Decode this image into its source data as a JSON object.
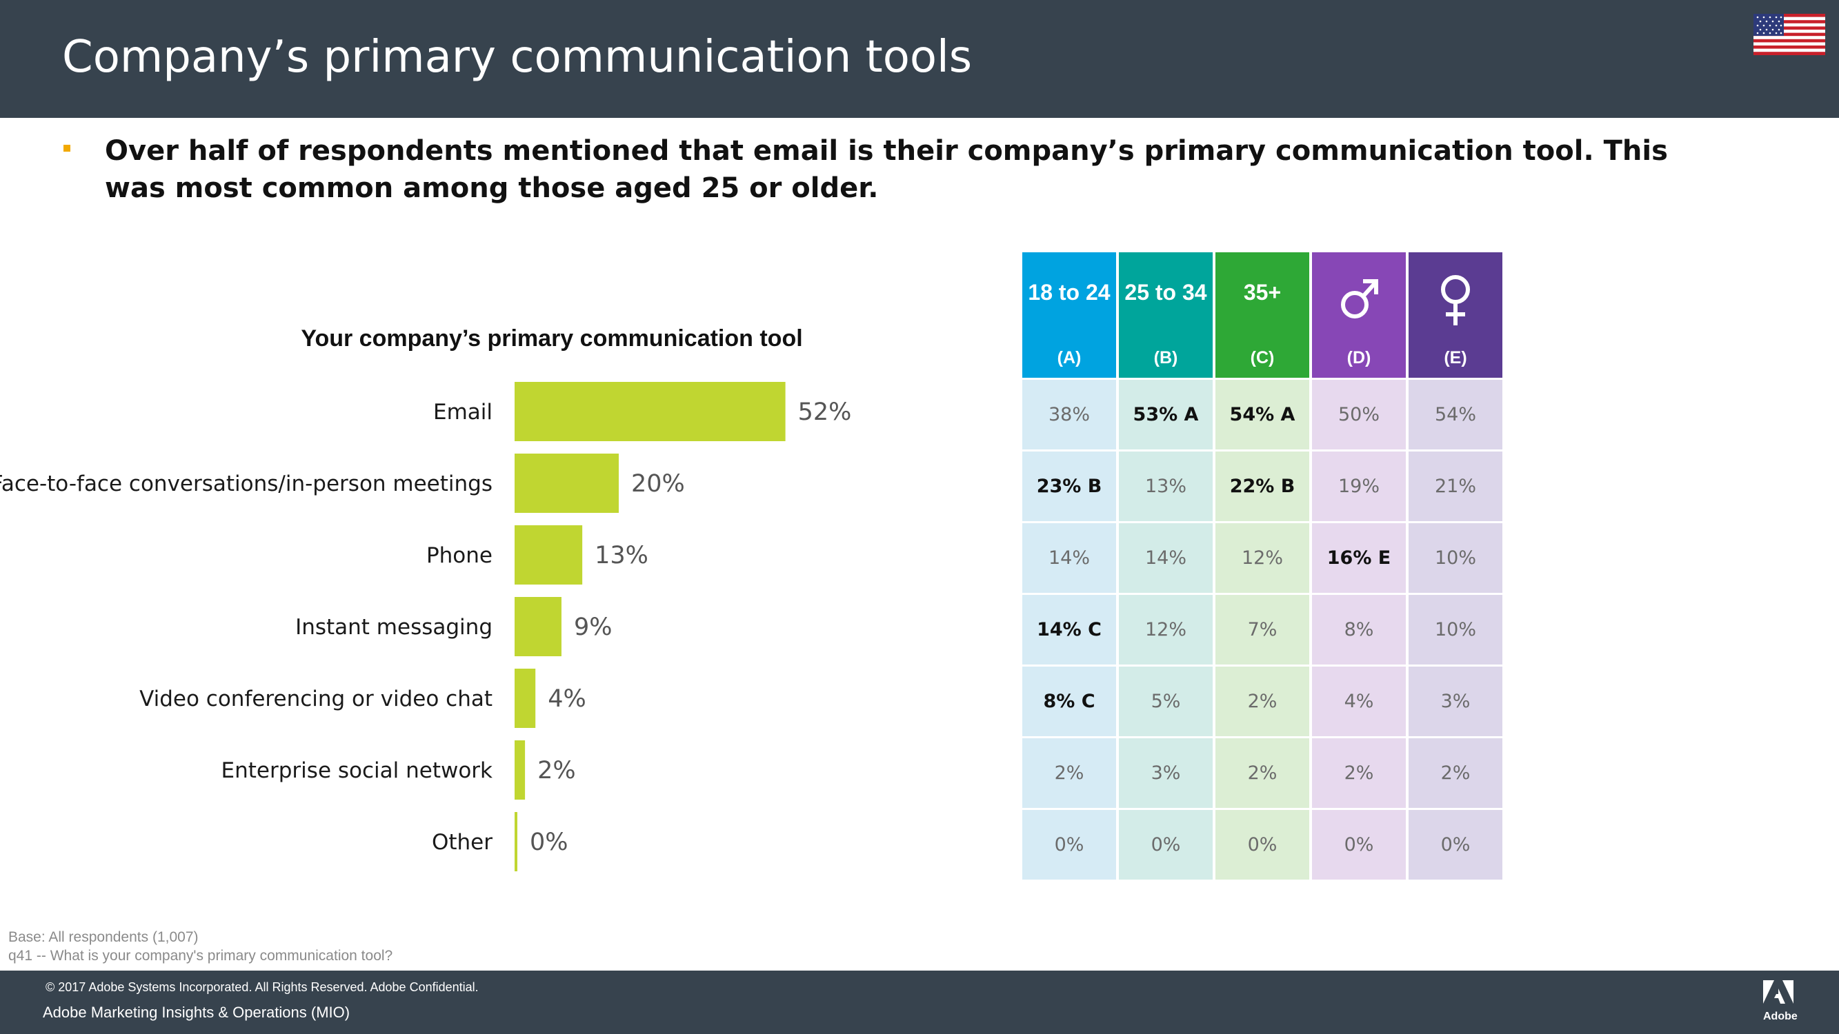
{
  "header": {
    "title": "Company’s primary communication tools",
    "flag_icon": "us-flag-icon"
  },
  "headline": "Over half of respondents mentioned that email is their company’s primary communication tool. This was most common among those aged 25 or older.",
  "chart_data": [
    {
      "type": "bar",
      "orientation": "horizontal",
      "title": "Your company’s primary communication tool",
      "categories": [
        "Email",
        "Face-to-face conversations/in-person meetings",
        "Phone",
        "Instant messaging",
        "Video conferencing or video chat",
        "Enterprise social network",
        "Other"
      ],
      "values": [
        52,
        20,
        13,
        9,
        4,
        2,
        0
      ],
      "value_labels": [
        "52%",
        "20%",
        "13%",
        "9%",
        "4%",
        "2%",
        "0%"
      ],
      "unit": "%",
      "xlim": [
        0,
        100
      ],
      "color": "#c0d631"
    },
    {
      "type": "table",
      "columns": [
        {
          "label": "18 to 24",
          "letter": "(A)",
          "header_color": "#00a3e0",
          "cell_color": "#d6ebf5"
        },
        {
          "label": "25 to 34",
          "letter": "(B)",
          "header_color": "#00a59b",
          "cell_color": "#d3ece8"
        },
        {
          "label": "35+",
          "letter": "(C)",
          "header_color": "#2ea836",
          "cell_color": "#dceed4"
        },
        {
          "label": "",
          "icon": "male-symbol-icon",
          "letter": "(D)",
          "header_color": "#8747b6",
          "cell_color": "#e7d9ee"
        },
        {
          "label": "",
          "icon": "female-symbol-icon",
          "letter": "(E)",
          "header_color": "#5b3c92",
          "cell_color": "#dcd6ea"
        }
      ],
      "rows": [
        [
          "38%",
          "53% A",
          "54% A",
          "50%",
          "54%"
        ],
        [
          "23% B",
          "13%",
          "22% B",
          "19%",
          "21%"
        ],
        [
          "14%",
          "14%",
          "12%",
          "16% E",
          "10%"
        ],
        [
          "14% C",
          "12%",
          "7%",
          "8%",
          "10%"
        ],
        [
          "8% C",
          "5%",
          "2%",
          "4%",
          "3%"
        ],
        [
          "2%",
          "3%",
          "2%",
          "2%",
          "2%"
        ],
        [
          "0%",
          "0%",
          "0%",
          "0%",
          "0%"
        ]
      ],
      "bold_cells": [
        [
          0,
          1
        ],
        [
          0,
          2
        ],
        [
          1,
          0
        ],
        [
          1,
          2
        ],
        [
          2,
          3
        ],
        [
          3,
          0
        ],
        [
          4,
          0
        ]
      ]
    }
  ],
  "notes": {
    "base": "Base: All respondents (1,007)",
    "question": "q41 -- What is your company's primary communication tool?"
  },
  "footer": {
    "copyright": "© 2017 Adobe Systems Incorporated.  All Rights Reserved.  Adobe Confidential.",
    "department": "Adobe Marketing Insights & Operations (MIO)",
    "logo_text": "Adobe"
  }
}
